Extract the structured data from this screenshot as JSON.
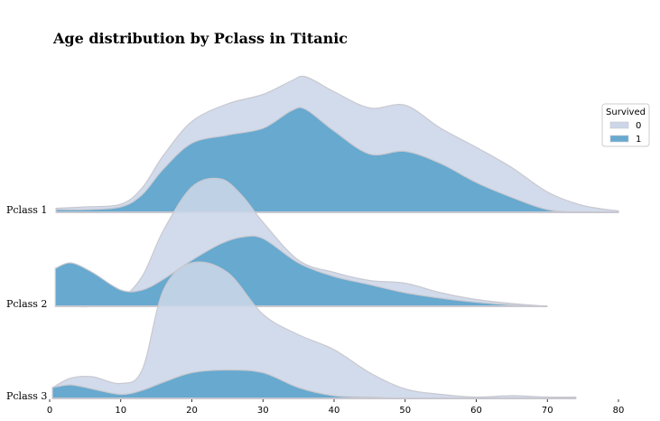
{
  "chart_data": {
    "type": "ridgeline",
    "title": "Age distribution by Pclass in Titanic",
    "xlabel": "",
    "ylabel": "",
    "xlim": [
      0,
      80
    ],
    "x_ticks": [
      0,
      10,
      20,
      30,
      40,
      50,
      60,
      70,
      80
    ],
    "legend": {
      "title": "Survived",
      "position": "right",
      "entries": [
        "0",
        "1"
      ]
    },
    "colors": {
      "0": "#ccd6e8",
      "1": "#67a9cf",
      "outline": "#c8c8d0"
    },
    "rows": [
      {
        "label": "Pclass 1",
        "x": [
          0.9,
          5,
          10,
          13,
          16,
          20,
          25,
          30,
          34,
          36,
          40,
          45,
          50,
          55,
          60,
          65,
          70,
          75,
          80
        ],
        "series": [
          {
            "name": "0",
            "values": [
              0.03,
              0.04,
              0.06,
              0.18,
              0.42,
              0.67,
              0.8,
              0.87,
              0.97,
              1.0,
              0.89,
              0.77,
              0.79,
              0.62,
              0.48,
              0.33,
              0.15,
              0.05,
              0.01
            ]
          },
          {
            "name": "1",
            "values": [
              0.02,
              0.02,
              0.04,
              0.13,
              0.32,
              0.51,
              0.57,
              0.62,
              0.75,
              0.76,
              0.6,
              0.43,
              0.45,
              0.36,
              0.22,
              0.11,
              0.02,
              0.0,
              0.0
            ]
          }
        ]
      },
      {
        "label": "Pclass 2",
        "x": [
          0.8,
          3,
          6,
          10,
          13,
          16,
          20,
          24,
          27,
          30,
          35,
          40,
          45,
          50,
          55,
          60,
          65,
          70
        ],
        "series": [
          {
            "name": "0",
            "values": [
              0.0,
              0.0,
              0.0,
              0.06,
              0.22,
              0.56,
              0.88,
              0.94,
              0.82,
              0.62,
              0.34,
              0.25,
              0.19,
              0.17,
              0.1,
              0.05,
              0.02,
              0.0
            ]
          },
          {
            "name": "1",
            "values": [
              0.28,
              0.32,
              0.25,
              0.12,
              0.12,
              0.2,
              0.34,
              0.46,
              0.51,
              0.5,
              0.32,
              0.22,
              0.16,
              0.1,
              0.06,
              0.03,
              0.01,
              0.0
            ]
          }
        ]
      },
      {
        "label": "Pclass 3",
        "x": [
          0.4,
          3,
          6,
          10,
          13,
          16,
          20,
          25,
          30,
          35,
          40,
          45,
          50,
          55,
          60,
          65,
          70,
          74
        ],
        "series": [
          {
            "name": "0",
            "values": [
              0.08,
              0.15,
              0.16,
              0.11,
              0.21,
              0.8,
              1.0,
              0.93,
              0.62,
              0.47,
              0.36,
              0.19,
              0.07,
              0.03,
              0.01,
              0.02,
              0.01,
              0.01
            ]
          },
          {
            "name": "1",
            "values": [
              0.08,
              0.1,
              0.07,
              0.03,
              0.06,
              0.12,
              0.19,
              0.21,
              0.19,
              0.08,
              0.02,
              0.01,
              0.0,
              0.0,
              0.0,
              0.0,
              0.0,
              0.0
            ]
          }
        ]
      }
    ]
  }
}
